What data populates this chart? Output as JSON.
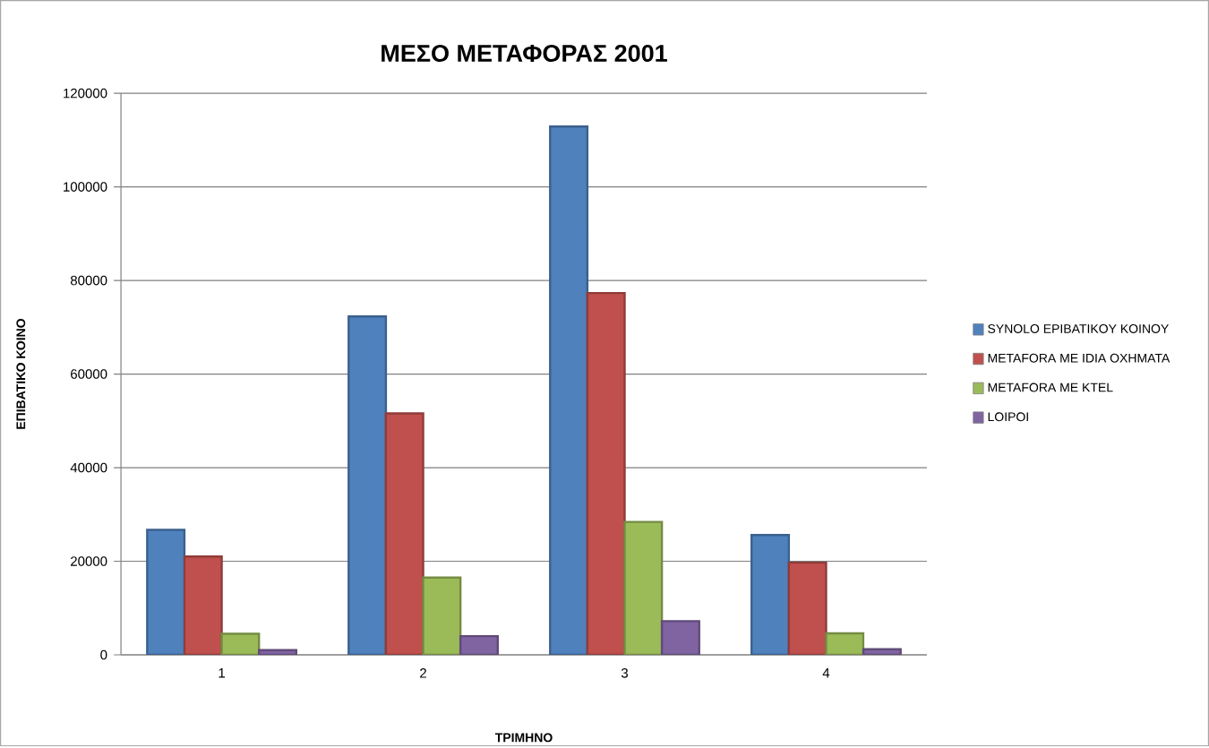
{
  "chart_data": {
    "type": "bar",
    "title": "ΜΕΣΟ ΜΕΤΑΦΟΡΑΣ 2001",
    "xlabel": "ΤΡΙΜΗΝΟ",
    "ylabel": "ΕΠΙΒΑΤΙΚΟ ΚΟΙΝΟ",
    "categories": [
      "1",
      "2",
      "3",
      "4"
    ],
    "series": [
      {
        "name": "SYNOLO EPIBATIKOY KOINOY",
        "color": "#4f81bd",
        "values": [
          26700,
          72300,
          112900,
          25600
        ]
      },
      {
        "name": "METAFORA ME IDIA OXHMATA",
        "color": "#c0504d",
        "values": [
          21000,
          51600,
          77300,
          19700
        ]
      },
      {
        "name": "METAFORA ME KTEL",
        "color": "#9bbb59",
        "values": [
          4500,
          16500,
          28400,
          4600
        ]
      },
      {
        "name": "LOIPOI",
        "color": "#8064a2",
        "values": [
          1000,
          4000,
          7200,
          1200
        ]
      }
    ],
    "ylim": [
      0,
      120000
    ],
    "yticks": [
      0,
      20000,
      40000,
      60000,
      80000,
      100000,
      120000
    ],
    "grid": "y",
    "legend": "right"
  }
}
